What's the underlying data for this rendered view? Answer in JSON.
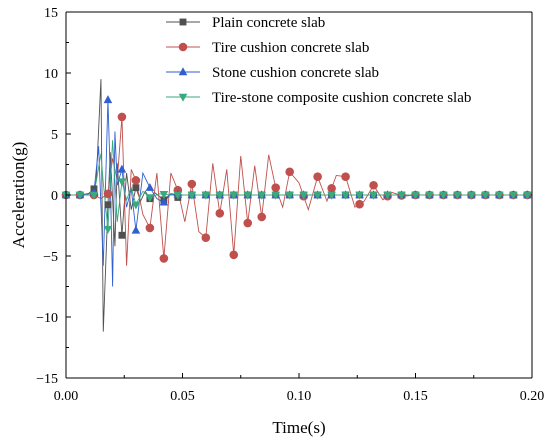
{
  "chart_data": {
    "type": "line",
    "xlabel": "Time(s)",
    "ylabel": "Acceleration(g)",
    "xlim": [
      0.0,
      0.2
    ],
    "ylim": [
      -15,
      15
    ],
    "xticks": [
      0.0,
      0.05,
      0.1,
      0.15,
      0.2
    ],
    "xtick_labels": [
      "0.00",
      "0.05",
      "0.10",
      "0.15",
      "0.20"
    ],
    "yticks": [
      -15,
      -10,
      -5,
      0,
      5,
      10,
      15
    ],
    "ytick_labels": [
      "−15",
      "−10",
      "−5",
      "0",
      "5",
      "10",
      "15"
    ],
    "grid": false,
    "legend_position": "top-right",
    "series": [
      {
        "name": "Plain concrete slab",
        "color": "#505050",
        "marker": "square",
        "x": [
          0.0,
          0.003,
          0.006,
          0.009,
          0.012,
          0.013,
          0.015,
          0.016,
          0.018,
          0.019,
          0.021,
          0.022,
          0.024,
          0.026,
          0.028,
          0.03,
          0.032,
          0.034,
          0.036,
          0.038,
          0.04,
          0.042,
          0.045,
          0.048,
          0.05,
          0.055,
          0.06,
          0.07,
          0.08,
          0.09,
          0.1,
          0.12,
          0.14,
          0.16,
          0.18,
          0.2
        ],
        "y": [
          0,
          0,
          0,
          0,
          0.5,
          1.2,
          9.5,
          -11.2,
          -0.8,
          3.5,
          -4.2,
          2.6,
          -3.3,
          1.8,
          -1.2,
          0.6,
          -0.5,
          0.3,
          -0.3,
          0.2,
          -0.1,
          -0.4,
          0.1,
          -0.2,
          0,
          0,
          0,
          0,
          0,
          0,
          0,
          0,
          0,
          0,
          0,
          0
        ]
      },
      {
        "name": "Tire cushion concrete slab",
        "color": "#c0504d",
        "marker": "circle",
        "x": [
          0.0,
          0.006,
          0.012,
          0.015,
          0.018,
          0.02,
          0.022,
          0.024,
          0.026,
          0.028,
          0.03,
          0.033,
          0.036,
          0.039,
          0.042,
          0.045,
          0.048,
          0.051,
          0.054,
          0.057,
          0.06,
          0.063,
          0.066,
          0.069,
          0.072,
          0.075,
          0.078,
          0.081,
          0.084,
          0.087,
          0.09,
          0.093,
          0.096,
          0.1,
          0.104,
          0.108,
          0.112,
          0.116,
          0.12,
          0.124,
          0.128,
          0.132,
          0.136,
          0.14,
          0.145,
          0.15,
          0.16,
          0.17,
          0.18,
          0.19,
          0.2
        ],
        "y": [
          0,
          0,
          0,
          -0.3,
          0.1,
          3.0,
          1.2,
          6.4,
          -5.8,
          2.1,
          1.2,
          -1.6,
          -2.7,
          1.8,
          -5.2,
          1.8,
          0.4,
          -2.2,
          0.9,
          -3.0,
          -3.5,
          2.6,
          -1.5,
          2.1,
          -4.9,
          3.2,
          -2.3,
          2.4,
          -1.8,
          3.3,
          0.6,
          -1.0,
          1.9,
          1.0,
          -1.2,
          1.5,
          -0.5,
          1.6,
          1.5,
          -1.0,
          -0.5,
          0.8,
          -0.4,
          0.2,
          -0.1,
          0,
          0,
          0,
          0,
          0,
          0
        ]
      },
      {
        "name": "Stone cushion concrete slab",
        "color": "#2f5fd0",
        "marker": "triangle-up",
        "x": [
          0.0,
          0.006,
          0.012,
          0.014,
          0.016,
          0.018,
          0.019,
          0.02,
          0.021,
          0.022,
          0.024,
          0.026,
          0.028,
          0.03,
          0.033,
          0.036,
          0.039,
          0.042,
          0.045,
          0.05,
          0.06,
          0.08,
          0.1,
          0.12,
          0.14,
          0.16,
          0.18,
          0.2
        ],
        "y": [
          0,
          0,
          0.2,
          4.0,
          -5.8,
          7.8,
          1.5,
          -7.5,
          5.2,
          0.8,
          2.1,
          -1.0,
          0.5,
          -2.9,
          1.8,
          0.6,
          -0.3,
          -0.6,
          0.1,
          0,
          0,
          0,
          0,
          0,
          0,
          0,
          0,
          0
        ]
      },
      {
        "name": "Tire-stone composite cushion concrete slab",
        "color": "#3aaa7e",
        "marker": "triangle-down",
        "x": [
          0.0,
          0.006,
          0.012,
          0.015,
          0.016,
          0.018,
          0.02,
          0.022,
          0.024,
          0.026,
          0.028,
          0.03,
          0.033,
          0.036,
          0.04,
          0.045,
          0.05,
          0.06,
          0.08,
          0.1,
          0.12,
          0.14,
          0.16,
          0.18,
          0.2
        ],
        "y": [
          0,
          0,
          0,
          3.4,
          1.0,
          -2.8,
          4.5,
          -2.2,
          1.1,
          -0.4,
          0.6,
          -0.8,
          0.3,
          -0.2,
          0.1,
          0,
          0,
          0,
          0,
          0,
          0,
          0,
          0,
          0,
          0
        ]
      }
    ]
  }
}
